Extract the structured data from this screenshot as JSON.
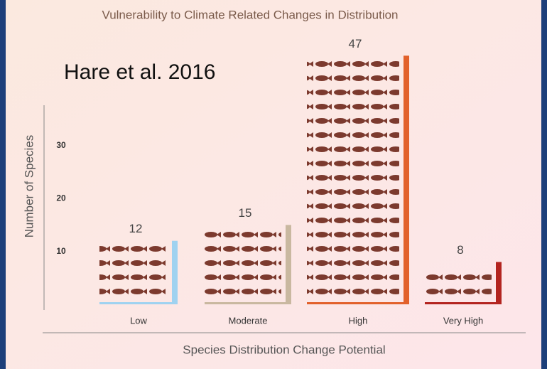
{
  "chart_data": {
    "type": "bar",
    "title": "Vulnerability to Climate Related Changes in Distribution",
    "annotation": "Hare et al. 2016",
    "y_label": "Number of Species",
    "x_label": "Species Distribution Change Potential",
    "categories": [
      "Low",
      "Moderate",
      "High",
      "Very High"
    ],
    "values": [
      12,
      15,
      47,
      8
    ],
    "colors": [
      "#9fd2f0",
      "#c9b8a0",
      "#e2612b",
      "#b3241f"
    ],
    "ylim": [
      0,
      50
    ],
    "yticks": [
      10,
      20,
      30
    ]
  }
}
